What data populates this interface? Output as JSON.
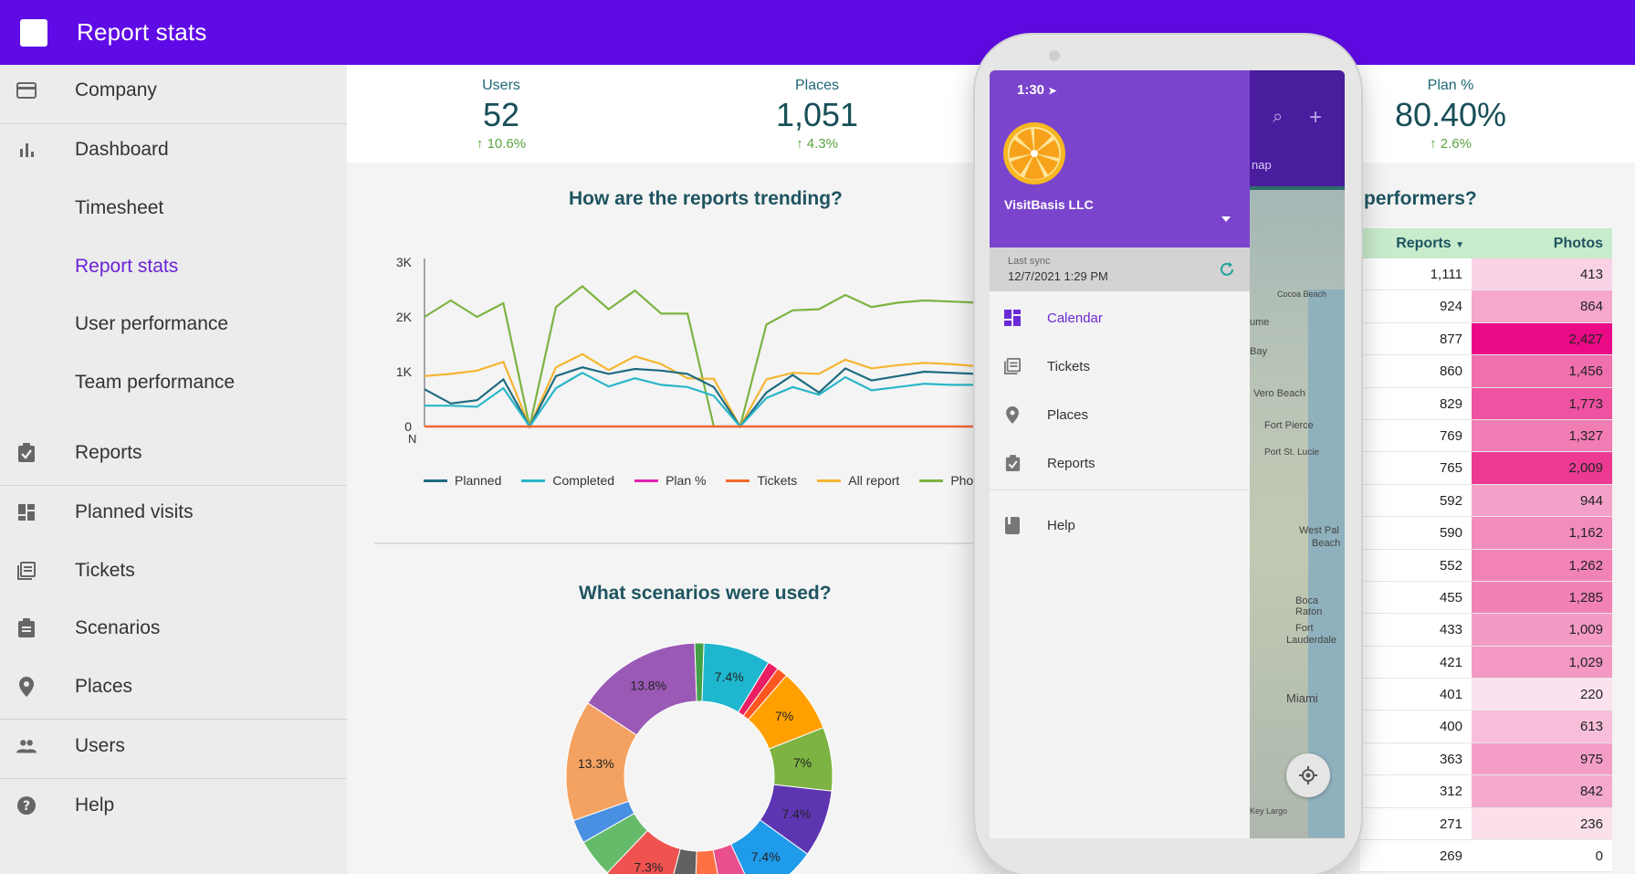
{
  "app": {
    "title": "Report stats"
  },
  "sidebar": {
    "items": [
      {
        "label": "Company",
        "icon": "card-icon",
        "type": "main"
      },
      {
        "label": "Dashboard",
        "icon": "bar-chart-icon",
        "type": "main"
      },
      {
        "label": "Timesheet",
        "type": "sub"
      },
      {
        "label": "Report stats",
        "type": "sub",
        "active": true
      },
      {
        "label": "User performance",
        "type": "sub"
      },
      {
        "label": "Team performance",
        "type": "sub"
      },
      {
        "label": "Reports",
        "icon": "clipboard-check-icon",
        "type": "main"
      },
      {
        "label": "Planned visits",
        "icon": "grid-icon",
        "type": "main"
      },
      {
        "label": "Tickets",
        "icon": "list-doc-icon",
        "type": "main"
      },
      {
        "label": "Scenarios",
        "icon": "clipboard-icon",
        "type": "main"
      },
      {
        "label": "Places",
        "icon": "location-pin-icon",
        "type": "main"
      },
      {
        "label": "Users",
        "icon": "people-icon",
        "type": "main"
      },
      {
        "label": "Help",
        "icon": "help-icon",
        "type": "main"
      }
    ]
  },
  "stats": [
    {
      "label": "Users",
      "value": "52",
      "delta": "10.6%"
    },
    {
      "label": "Places",
      "value": "1,051",
      "delta": "4.3%"
    },
    {
      "label": "Plan %",
      "value": "80.40%",
      "delta": "2.6%"
    }
  ],
  "sections": {
    "trend_title": "How are the reports trending?",
    "scenario_title": "What scenarios were used?",
    "performers_title": "performers?"
  },
  "chart_data": [
    {
      "type": "line",
      "title": "How are the reports trending?",
      "y_ticks": [
        "0",
        "1K",
        "2K",
        "3K"
      ],
      "x_tick_first": "N",
      "ylim": [
        0,
        3000
      ],
      "x": [
        0,
        1,
        2,
        3,
        4,
        5,
        6,
        7,
        8,
        9,
        10,
        11,
        12,
        13,
        14,
        15,
        16,
        17,
        18,
        19,
        20,
        21
      ],
      "series": [
        {
          "name": "Planned",
          "color": "#1f6b80",
          "values": [
            680,
            420,
            480,
            860,
            0,
            920,
            1080,
            960,
            1050,
            1020,
            960,
            720,
            0,
            620,
            940,
            620,
            1060,
            840,
            920,
            1000,
            980,
            960
          ]
        },
        {
          "name": "Completed",
          "color": "#29b6c8",
          "values": [
            380,
            380,
            360,
            700,
            0,
            700,
            980,
            730,
            880,
            760,
            720,
            560,
            0,
            520,
            720,
            580,
            900,
            660,
            720,
            780,
            760,
            760
          ]
        },
        {
          "name": "Plan %",
          "color": "#e020b0",
          "values": [
            0,
            0,
            0,
            0,
            0,
            0,
            0,
            0,
            0,
            0,
            0,
            0,
            0,
            0,
            0,
            0,
            0,
            0,
            0,
            0,
            0,
            0
          ]
        },
        {
          "name": "Tickets",
          "color": "#f06a2a",
          "values": [
            0,
            0,
            0,
            0,
            0,
            0,
            0,
            0,
            0,
            0,
            0,
            0,
            0,
            0,
            0,
            0,
            0,
            0,
            0,
            0,
            0,
            0
          ]
        },
        {
          "name": "All report",
          "color": "#f5b531",
          "values": [
            920,
            960,
            1020,
            1180,
            0,
            1080,
            1320,
            1030,
            1280,
            1140,
            880,
            870,
            0,
            860,
            980,
            960,
            1220,
            1060,
            1120,
            1160,
            1140,
            1100
          ]
        },
        {
          "name": "Pho",
          "color": "#7cb342",
          "values": [
            2000,
            2300,
            2000,
            2250,
            0,
            2180,
            2560,
            2140,
            2480,
            2060,
            2060,
            0,
            0,
            1860,
            2120,
            2140,
            2400,
            2180,
            2260,
            2300,
            2280,
            2260
          ]
        }
      ]
    },
    {
      "type": "pie",
      "title": "What scenarios were used?",
      "slices": [
        {
          "label": "7.4%",
          "value": 7.4,
          "color": "#1fb7cf"
        },
        {
          "label": "",
          "value": 1.2,
          "color": "#e91e63"
        },
        {
          "label": "",
          "value": 1.2,
          "color": "#ff5722"
        },
        {
          "label": "7%",
          "value": 7.0,
          "color": "#ffa000"
        },
        {
          "label": "7%",
          "value": 7.0,
          "color": "#7cb342"
        },
        {
          "label": "7.4%",
          "value": 7.4,
          "color": "#5e35b1"
        },
        {
          "label": "7.4%",
          "value": 7.4,
          "color": "#1e9be9"
        },
        {
          "label": "",
          "value": 3.6,
          "color": "#e84f8c"
        },
        {
          "label": "",
          "value": 3.2,
          "color": "#ff7043"
        },
        {
          "label": "",
          "value": 3.2,
          "color": "#616161"
        },
        {
          "label": "7.3%",
          "value": 7.3,
          "color": "#ef5350"
        },
        {
          "label": "",
          "value": 4.2,
          "color": "#66bb6a"
        },
        {
          "label": "",
          "value": 2.6,
          "color": "#4a90e2"
        },
        {
          "label": "13.3%",
          "value": 13.3,
          "color": "#f4a261"
        },
        {
          "label": "13.8%",
          "value": 13.8,
          "color": "#9b59b6"
        },
        {
          "label": "",
          "value": 1.0,
          "color": "#43a047"
        }
      ]
    }
  ],
  "table": {
    "headers": {
      "reports": "Reports",
      "photos": "Photos"
    },
    "rows": [
      {
        "reports": "1,111",
        "photos": "413",
        "bg": "#f9d2e5"
      },
      {
        "reports": "924",
        "photos": "864",
        "bg": "#f5a7cc"
      },
      {
        "reports": "877",
        "photos": "2,427",
        "bg": "#ea0a86"
      },
      {
        "reports": "860",
        "photos": "1,456",
        "bg": "#f06fad"
      },
      {
        "reports": "829",
        "photos": "1,773",
        "bg": "#ee52a0"
      },
      {
        "reports": "769",
        "photos": "1,327",
        "bg": "#f27cb4"
      },
      {
        "reports": "765",
        "photos": "2,009",
        "bg": "#ec3a93"
      },
      {
        "reports": "592",
        "photos": "944",
        "bg": "#f4a1c9"
      },
      {
        "reports": "590",
        "photos": "1,162",
        "bg": "#f38cbc"
      },
      {
        "reports": "552",
        "photos": "1,262",
        "bg": "#f283b7"
      },
      {
        "reports": "455",
        "photos": "1,285",
        "bg": "#f281b6"
      },
      {
        "reports": "433",
        "photos": "1,009",
        "bg": "#f49bc5"
      },
      {
        "reports": "421",
        "photos": "1,029",
        "bg": "#f499c4"
      },
      {
        "reports": "401",
        "photos": "220",
        "bg": "#fbe2ee"
      },
      {
        "reports": "400",
        "photos": "613",
        "bg": "#f7bfd9"
      },
      {
        "reports": "363",
        "photos": "975",
        "bg": "#f49ec7"
      },
      {
        "reports": "312",
        "photos": "842",
        "bg": "#f5a9cd"
      },
      {
        "reports": "271",
        "photos": "236",
        "bg": "#fbe0ec"
      },
      {
        "reports": "269",
        "photos": "0",
        "bg": "#ffffff"
      }
    ]
  },
  "phone": {
    "time": "1:30",
    "org_name": "VisitBasis LLC",
    "sync_label": "Last sync",
    "sync_time": "12/7/2021 1:29 PM",
    "map_tab": "nap",
    "menu": [
      {
        "label": "Calendar",
        "icon": "grid-icon",
        "active": true
      },
      {
        "label": "Tickets",
        "icon": "list-doc-icon"
      },
      {
        "label": "Places",
        "icon": "location-pin-icon"
      },
      {
        "label": "Reports",
        "icon": "clipboard-check-icon"
      },
      {
        "label": "Help",
        "icon": "book-icon"
      }
    ],
    "map_labels": [
      "Cocoa Beach",
      "ume",
      "Bay",
      "Vero Beach",
      "Fort Pierce",
      "Port St. Lucie",
      "West Pal",
      "Beach",
      "Boca Raton",
      "Fort",
      "Lauderdale",
      "Miami",
      "Key Largo"
    ]
  },
  "colors": {
    "topbar": "#5f0be6",
    "accent": "#6a22d6",
    "drawer_header": "#7a45cc",
    "positive": "#5aa542"
  }
}
